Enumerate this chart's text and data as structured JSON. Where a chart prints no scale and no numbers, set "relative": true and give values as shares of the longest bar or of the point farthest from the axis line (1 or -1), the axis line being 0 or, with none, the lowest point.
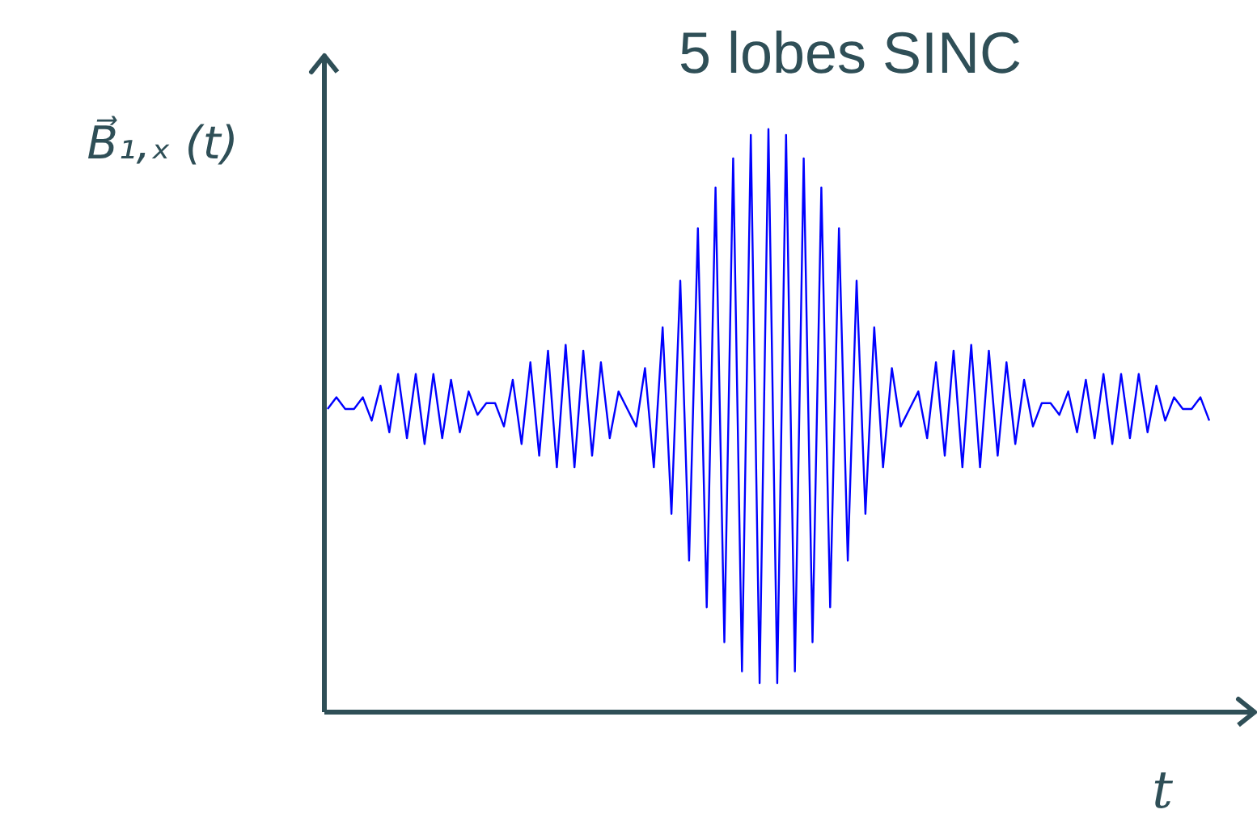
{
  "chart_data": {
    "type": "line",
    "title": "5 lobes SINC",
    "xlabel": "t",
    "ylabel": "B⃗₁,ₓ (t)",
    "relative": true,
    "grid": false,
    "marker": "none",
    "line_style": "solid",
    "categories": [
      null,
      null,
      null,
      null,
      null,
      null,
      null,
      null,
      null,
      null,
      null,
      null,
      null,
      null,
      null,
      null,
      null,
      null,
      null,
      null,
      null,
      null,
      null,
      null,
      null,
      null,
      null,
      null,
      null,
      null,
      null,
      null,
      null,
      null,
      null,
      null,
      null,
      null,
      null,
      null,
      null,
      null,
      null,
      null,
      null,
      null,
      null,
      null,
      null,
      null,
      null,
      null,
      null,
      null,
      null,
      null,
      null,
      null,
      null,
      null,
      null,
      null,
      null,
      null,
      null,
      null,
      null,
      null,
      null,
      null,
      null,
      null,
      null,
      null,
      null,
      null,
      null,
      null,
      null,
      null,
      null,
      null,
      null,
      null,
      null,
      null,
      null,
      null,
      null,
      null,
      null,
      null,
      null,
      null,
      null,
      null,
      null,
      null,
      null,
      null,
      null
    ],
    "series": [
      {
        "color": "#0000ff",
        "values": [
          0.52,
          0.54,
          0.52,
          0.52,
          0.54,
          0.5,
          0.56,
          0.48,
          0.58,
          0.47,
          0.58,
          0.46,
          0.58,
          0.47,
          0.57,
          0.48,
          0.55,
          0.51,
          0.53,
          0.53,
          0.49,
          0.57,
          0.46,
          0.6,
          0.44,
          0.62,
          0.42,
          0.63,
          0.42,
          0.62,
          0.44,
          0.6,
          0.47,
          0.55,
          0.52,
          0.49,
          0.59,
          0.42,
          0.66,
          0.34,
          0.74,
          0.26,
          0.83,
          0.18,
          0.9,
          0.12,
          0.95,
          0.07,
          0.99,
          0.05,
          1.0,
          0.05,
          0.99,
          0.07,
          0.95,
          0.12,
          0.9,
          0.18,
          0.83,
          0.26,
          0.74,
          0.34,
          0.66,
          0.42,
          0.59,
          0.49,
          0.52,
          0.55,
          0.47,
          0.6,
          0.44,
          0.62,
          0.42,
          0.63,
          0.42,
          0.62,
          0.44,
          0.6,
          0.46,
          0.57,
          0.49,
          0.53,
          0.53,
          0.51,
          0.55,
          0.48,
          0.57,
          0.47,
          0.58,
          0.46,
          0.58,
          0.47,
          0.58,
          0.48,
          0.56,
          0.5,
          0.54,
          0.52,
          0.52,
          0.54,
          0.5
        ]
      }
    ]
  }
}
